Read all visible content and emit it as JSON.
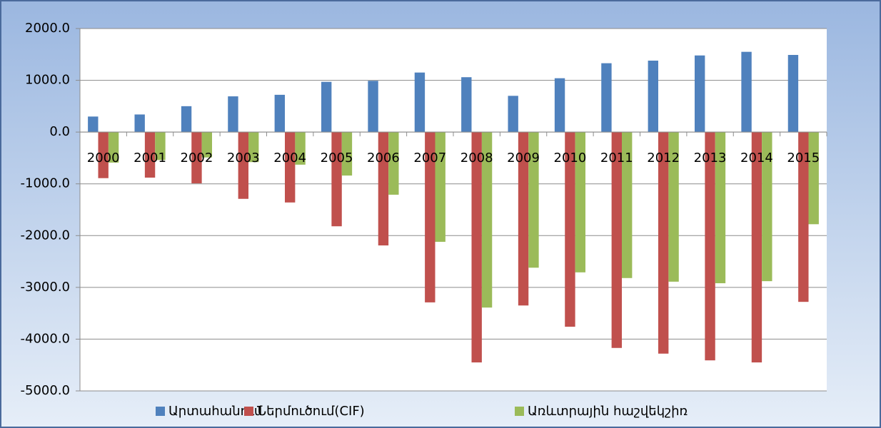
{
  "chart_data": {
    "type": "bar",
    "categories": [
      "2000",
      "2001",
      "2002",
      "2003",
      "2004",
      "2005",
      "2006",
      "2007",
      "2008",
      "2009",
      "2010",
      "2011",
      "2012",
      "2013",
      "2014",
      "2015"
    ],
    "series": [
      {
        "name": "Արտահանում",
        "color": "#4f81bd",
        "values": [
          300,
          340,
          500,
          690,
          720,
          970,
          990,
          1150,
          1060,
          700,
          1040,
          1330,
          1380,
          1480,
          1550,
          1490
        ]
      },
      {
        "name": "Ներմուծում(CIF)",
        "color": "#c0504d",
        "values": [
          -890,
          -880,
          -990,
          -1290,
          -1360,
          -1820,
          -2190,
          -3290,
          -4450,
          -3350,
          -3760,
          -4170,
          -4280,
          -4410,
          -4450,
          -3280
        ]
      },
      {
        "name": "Առևտրային հաշվեկշիռ",
        "color": "#9bbb59",
        "values": [
          -590,
          -540,
          -490,
          -580,
          -630,
          -840,
          -1210,
          -2120,
          -3390,
          -2620,
          -2710,
          -2820,
          -2890,
          -2920,
          -2880,
          -1780
        ]
      }
    ],
    "ylim": [
      -5000,
      2000
    ],
    "yticks": [
      {
        "value": -5000,
        "label": "-5000.0"
      },
      {
        "value": -4000,
        "label": "-4000.0"
      },
      {
        "value": -3000,
        "label": "-3000.0"
      },
      {
        "value": -2000,
        "label": "-2000.0"
      },
      {
        "value": -1000,
        "label": "-1000.0"
      },
      {
        "value": 0,
        "label": "0.0"
      },
      {
        "value": 1000,
        "label": "1000.0"
      },
      {
        "value": 2000,
        "label": "2000.0"
      }
    ],
    "grid": true,
    "legend": "bottom"
  }
}
